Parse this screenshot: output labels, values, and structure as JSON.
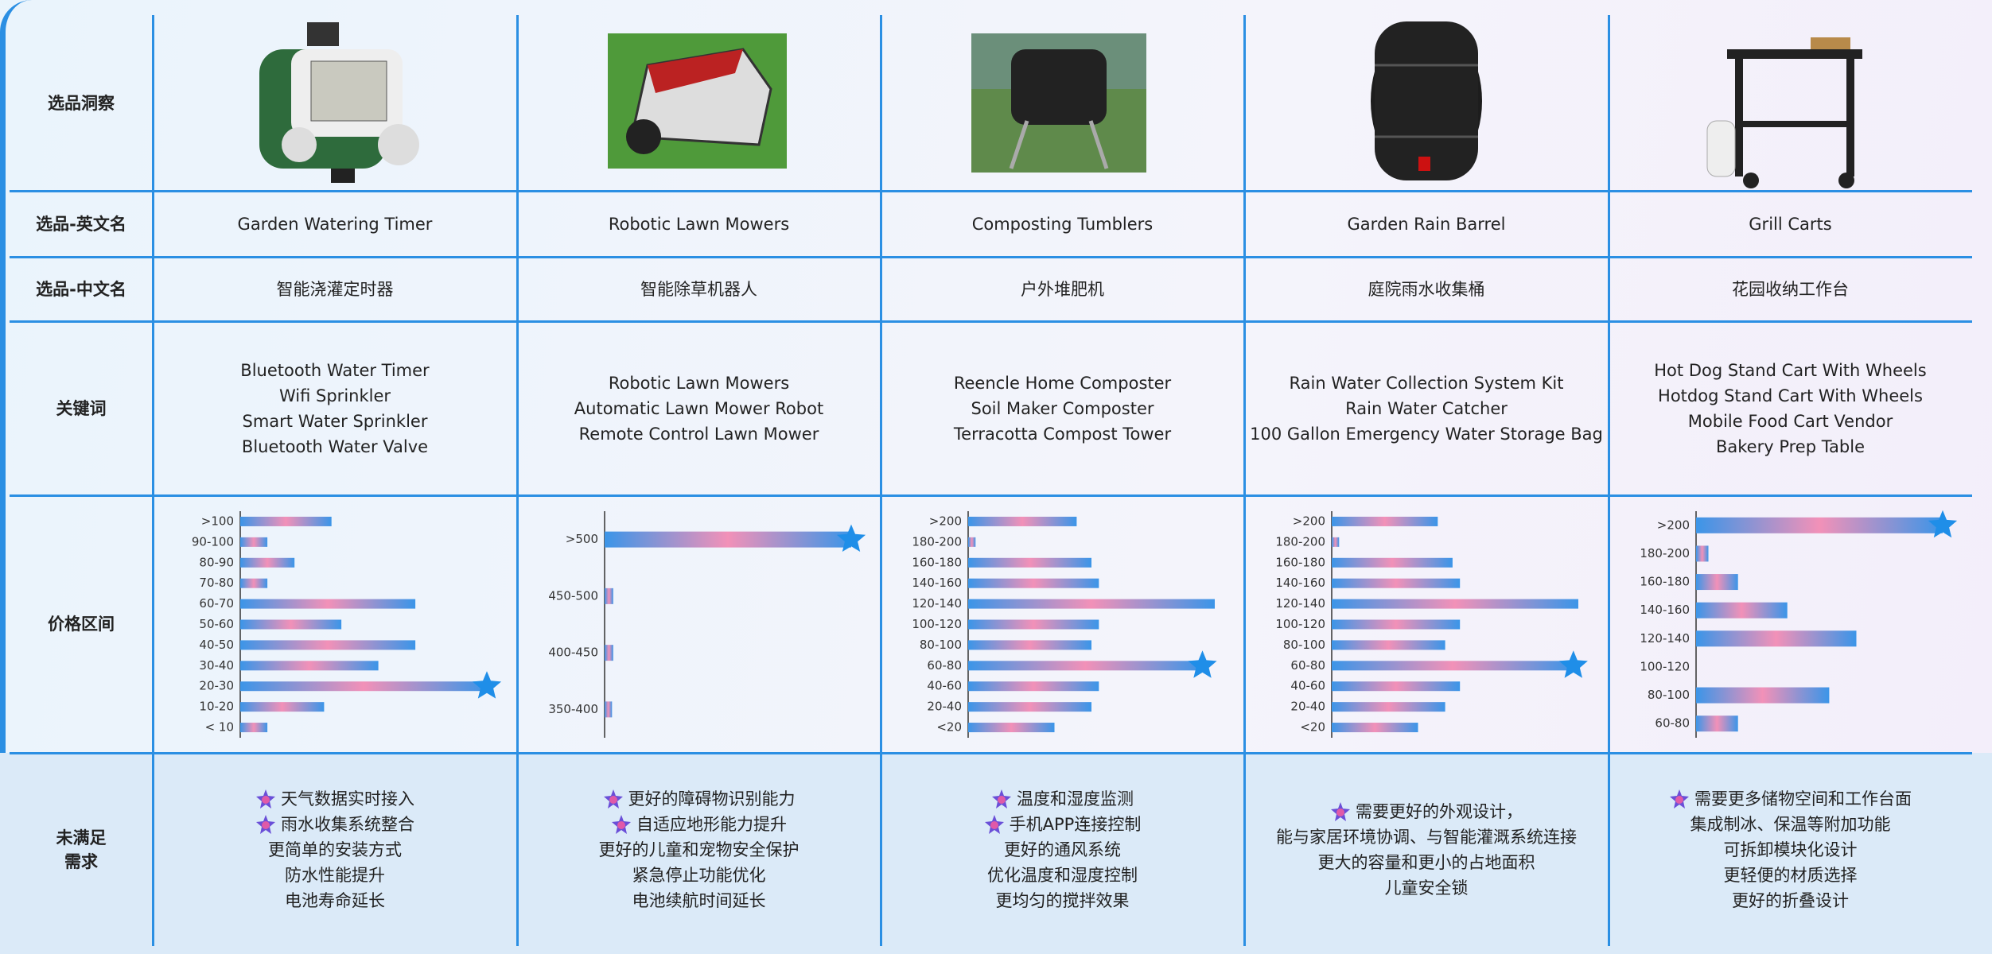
{
  "row_headers": [
    "选品洞察",
    "选品-英文名",
    "选品-中文名",
    "关键词",
    "价格区间",
    "未满足\n需求"
  ],
  "products": [
    {
      "name_en": "Garden Watering Timer",
      "name_cn": "智能浇灌定时器",
      "keywords": [
        "Bluetooth Water Timer",
        "Wifi Sprinkler",
        "Smart Water Sprinkler",
        "Bluetooth Water Valve"
      ],
      "price": {
        "categories": [
          ">100",
          "90-100",
          "80-90",
          "70-80",
          "60-70",
          "50-60",
          "40-50",
          "30-40",
          "20-30",
          "10-20",
          "< 10"
        ],
        "values": [
          3.7,
          1.1,
          2.2,
          1.1,
          7.1,
          4.1,
          7.1,
          5.6,
          10,
          3.4,
          1.1
        ],
        "highlight_index": 8
      },
      "needs": [
        {
          "text": "天气数据实时接入",
          "icon": true
        },
        {
          "text": "雨水收集系统整合",
          "icon": true
        },
        {
          "text": "更简单的安装方式",
          "icon": false
        },
        {
          "text": "防水性能提升",
          "icon": false
        },
        {
          "text": "电池寿命延长",
          "icon": false
        }
      ]
    },
    {
      "name_en": "Robotic Lawn Mowers",
      "name_cn": "智能除草机器人",
      "keywords": [
        "Robotic Lawn Mowers",
        "Automatic Lawn Mower Robot",
        "Remote Control Lawn Mower"
      ],
      "price": {
        "categories": [
          ">500",
          "450-500",
          "400-450",
          "350-400"
        ],
        "values": [
          10,
          0.35,
          0.35,
          0.3
        ],
        "highlight_index": 0
      },
      "needs": [
        {
          "text": "更好的障碍物识别能力",
          "icon": true
        },
        {
          "text": "自适应地形能力提升",
          "icon": true
        },
        {
          "text": "更好的儿童和宠物安全保护",
          "icon": false
        },
        {
          "text": "紧急停止功能优化",
          "icon": false
        },
        {
          "text": "电池续航时间延长",
          "icon": false
        }
      ]
    },
    {
      "name_en": "Composting Tumblers",
      "name_cn": "户外堆肥机",
      "keywords": [
        "Reencle Home Composter",
        "Soil Maker Composter",
        "Terracotta Compost Tower"
      ],
      "price": {
        "categories": [
          ">200",
          "180-200",
          "160-180",
          "140-160",
          "120-140",
          "100-120",
          "80-100",
          "60-80",
          "40-60",
          "20-40",
          "<20"
        ],
        "values": [
          4.4,
          0.3,
          5,
          5.3,
          10,
          5.3,
          5,
          9.5,
          5.3,
          5,
          3.5
        ],
        "highlight_index": 7
      },
      "needs": [
        {
          "text": "温度和湿度监测",
          "icon": true
        },
        {
          "text": "手机APP连接控制",
          "icon": true
        },
        {
          "text": "更好的通风系统",
          "icon": false
        },
        {
          "text": "优化温度和湿度控制",
          "icon": false
        },
        {
          "text": "更均匀的搅拌效果",
          "icon": false
        }
      ]
    },
    {
      "name_en": "Garden Rain Barrel",
      "name_cn": "庭院雨水收集桶",
      "keywords": [
        "Rain Water Collection System Kit",
        "Rain Water Catcher",
        "100 Gallon Emergency Water Storage Bag"
      ],
      "price": {
        "categories": [
          ">200",
          "180-200",
          "160-180",
          "140-160",
          "120-140",
          "100-120",
          "80-100",
          "60-80",
          "40-60",
          "20-40",
          "<20"
        ],
        "values": [
          4.3,
          0.3,
          4.9,
          5.2,
          10,
          5.2,
          4.6,
          9.8,
          5.2,
          4.6,
          3.5
        ],
        "highlight_index": 7
      },
      "needs": [
        {
          "text": "需要更好的外观设计，",
          "icon": true
        },
        {
          "text": "能与家居环境协调、与智能灌溉系统连接",
          "icon": false
        },
        {
          "text": "更大的容量和更小的占地面积",
          "icon": false
        },
        {
          "text": "儿童安全锁",
          "icon": false
        }
      ]
    },
    {
      "name_en": "Grill Carts",
      "name_cn": "花园收纳工作台",
      "keywords": [
        "Hot Dog Stand Cart With Wheels",
        "Hotdog Stand Cart With Wheels",
        "Mobile Food Cart Vendor",
        "Bakery Prep Table"
      ],
      "price": {
        "categories": [
          ">200",
          "180-200",
          "160-180",
          "140-160",
          "120-140",
          "100-120",
          "80-100",
          "60-80"
        ],
        "values": [
          10,
          0.5,
          1.7,
          3.7,
          6.5,
          0,
          5.4,
          1.7
        ],
        "highlight_index": 0
      },
      "needs": [
        {
          "text": "需要更多储物空间和工作台面",
          "icon": true
        },
        {
          "text": "集成制冰、保温等附加功能",
          "icon": false
        },
        {
          "text": "可拆卸模块化设计",
          "icon": false
        },
        {
          "text": "更轻便的材质选择",
          "icon": false
        },
        {
          "text": "更好的折叠设计",
          "icon": false
        }
      ]
    }
  ]
}
